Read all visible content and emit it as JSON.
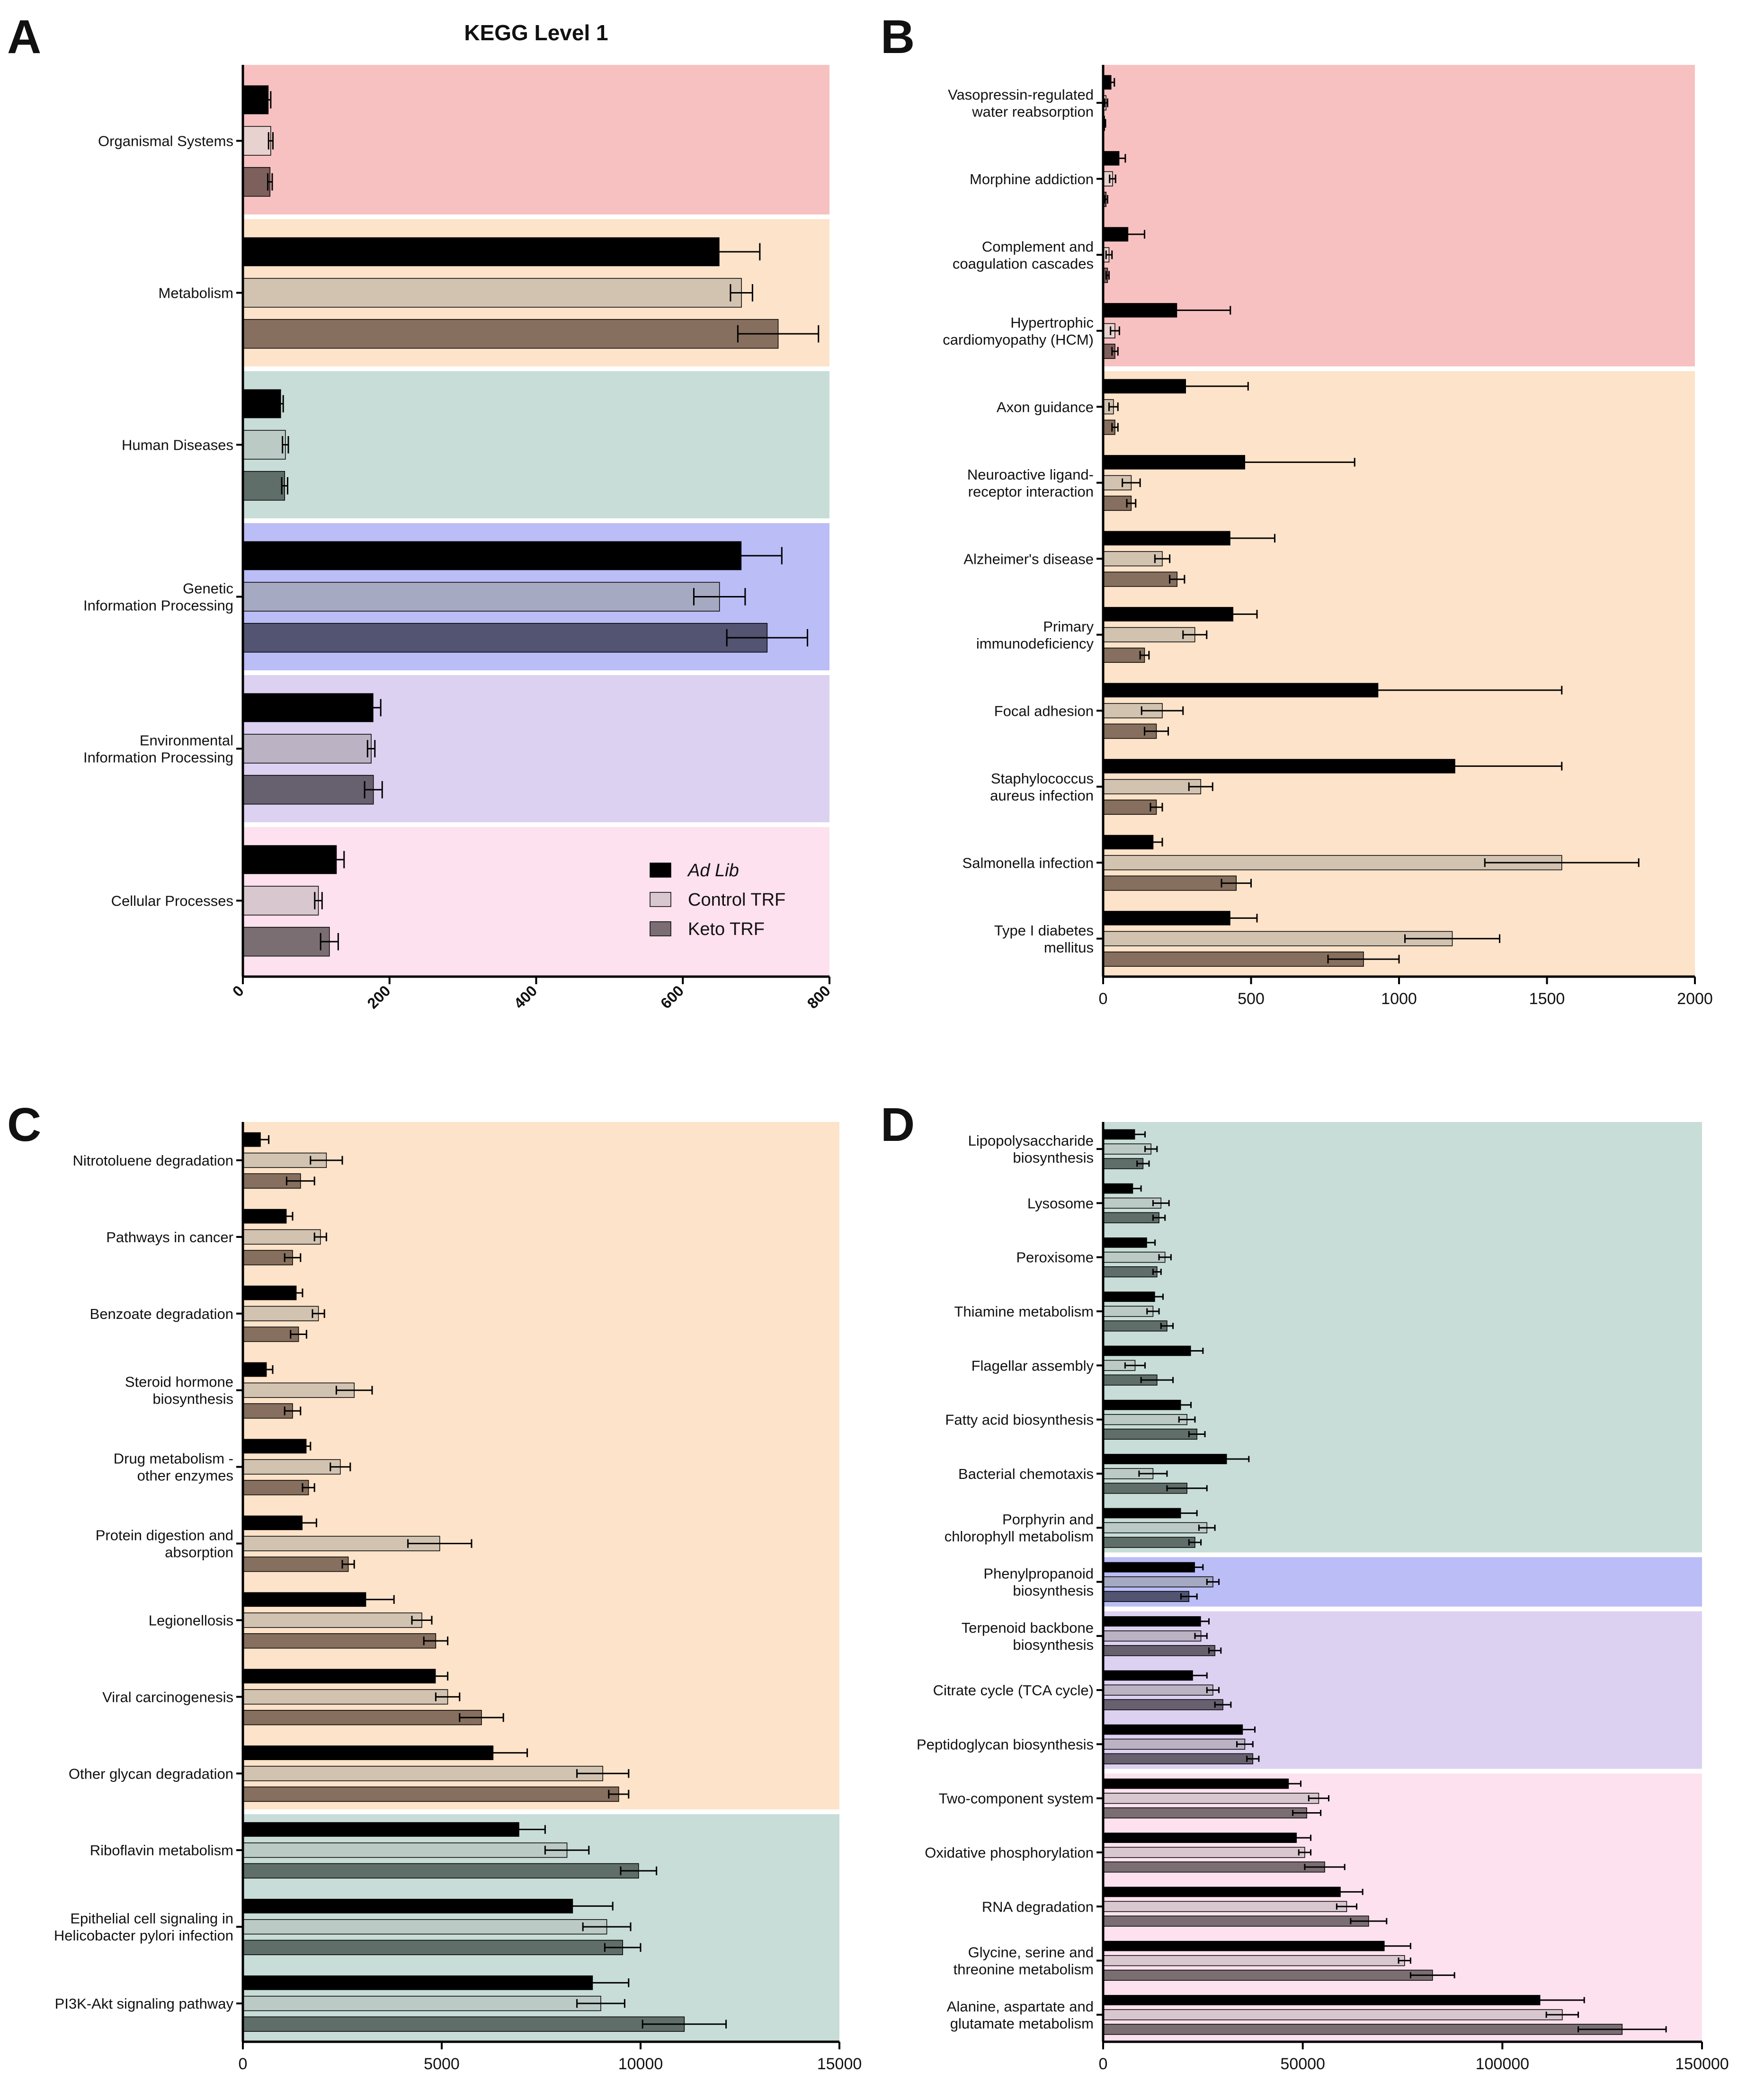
{
  "series_styles": [
    {
      "fill": "#000000"
    },
    {
      "fill_alpha": 0.55,
      "stroke": "#000000"
    },
    {
      "fill_alpha": 0.88,
      "stroke": "#000000"
    }
  ],
  "chart_data": [
    {
      "panel": "A",
      "type": "bar",
      "orientation": "horizontal",
      "title": "KEGG Level 1",
      "legend": {
        "position": "bottom-right",
        "entries": [
          "Ad Lib",
          "Control TRF",
          "Keto TRF"
        ],
        "italic": [
          true,
          false,
          false
        ]
      },
      "series_names": [
        "Ad Lib",
        "Control TRF",
        "Keto TRF"
      ],
      "xlim": [
        0,
        800
      ],
      "ticks": [
        0,
        200,
        400,
        600,
        800
      ],
      "tick_style": "rotated-bold",
      "bands": [
        {
          "color": "#f7c1c1",
          "cats": [
            0,
            0
          ],
          "series_colors": [
            "#000000",
            "#e8d2cf",
            "#7d5f5c"
          ]
        },
        {
          "color": "#fde3c9",
          "cats": [
            1,
            1
          ],
          "series_colors": [
            "#000000",
            "#d2c3b1",
            "#866f5e"
          ]
        },
        {
          "color": "#c8ddd7",
          "cats": [
            2,
            2
          ],
          "series_colors": [
            "#000000",
            "#bccac5",
            "#5f6e69"
          ]
        },
        {
          "color": "#babdf6",
          "cats": [
            3,
            3
          ],
          "series_colors": [
            "#000000",
            "#a6a9c2",
            "#525471"
          ]
        },
        {
          "color": "#ddd1f2",
          "cats": [
            4,
            4
          ],
          "series_colors": [
            "#000000",
            "#bbb3c4",
            "#67606f"
          ]
        },
        {
          "color": "#fde1ee",
          "cats": [
            5,
            5
          ],
          "series_colors": [
            "#000000",
            "#d8c7ce",
            "#7b6e73"
          ]
        }
      ],
      "categories": [
        "Organismal Systems",
        "Metabolism",
        "Human Diseases",
        "Genetic\nInformation Processing",
        "Environmental\nInformation Processing",
        "Cellular Processes"
      ],
      "values": [
        [
          35,
          38,
          37
        ],
        [
          650,
          680,
          730
        ],
        [
          52,
          58,
          57
        ],
        [
          680,
          650,
          715
        ],
        [
          178,
          175,
          178
        ],
        [
          128,
          103,
          118
        ]
      ],
      "errors": [
        [
          3,
          3,
          3
        ],
        [
          55,
          15,
          55
        ],
        [
          3,
          4,
          4
        ],
        [
          55,
          35,
          55
        ],
        [
          10,
          5,
          12
        ],
        [
          10,
          5,
          12
        ]
      ]
    },
    {
      "panel": "B",
      "type": "bar",
      "orientation": "horizontal",
      "title": "",
      "series_names": [
        "Ad Lib",
        "Control TRF",
        "Keto TRF"
      ],
      "xlim": [
        0,
        2000
      ],
      "ticks": [
        0,
        500,
        1000,
        1500,
        2000
      ],
      "tick_style": "plain",
      "bands": [
        {
          "color": "#f7c1c1",
          "cats": [
            0,
            3
          ],
          "series_colors": [
            "#000000",
            "#e8d2cf",
            "#7d5f5c"
          ]
        },
        {
          "color": "#fde3c9",
          "cats": [
            4,
            11
          ],
          "series_colors": [
            "#000000",
            "#d2c3b1",
            "#866f5e"
          ]
        }
      ],
      "categories": [
        "Vasopressin-regulated\nwater reabsorption",
        "Morphine addiction",
        "Complement and\ncoagulation cascades",
        "Hypertrophic\ncardiomyopathy (HCM)",
        "Axon guidance",
        "Neuroactive ligand-\nreceptor interaction",
        "Alzheimer's disease",
        "Primary\nimmunodeficiency",
        "Focal adhesion",
        "Staphylococcus\naureus infection",
        "Salmonella infection",
        "Type I diabetes\nmellitus"
      ],
      "values": [
        [
          28,
          10,
          5
        ],
        [
          55,
          32,
          10
        ],
        [
          85,
          20,
          15
        ],
        [
          250,
          40,
          40
        ],
        [
          280,
          35,
          40
        ],
        [
          480,
          95,
          95
        ],
        [
          430,
          200,
          250
        ],
        [
          440,
          310,
          140
        ],
        [
          930,
          200,
          180
        ],
        [
          1190,
          330,
          180
        ],
        [
          170,
          1550,
          450
        ],
        [
          430,
          1180,
          880
        ]
      ],
      "errors": [
        [
          10,
          5,
          3
        ],
        [
          20,
          10,
          5
        ],
        [
          55,
          10,
          5
        ],
        [
          180,
          15,
          10
        ],
        [
          210,
          15,
          10
        ],
        [
          370,
          30,
          15
        ],
        [
          150,
          25,
          25
        ],
        [
          80,
          40,
          15
        ],
        [
          620,
          70,
          40
        ],
        [
          360,
          40,
          20
        ],
        [
          30,
          260,
          50
        ],
        [
          90,
          160,
          120
        ]
      ]
    },
    {
      "panel": "C",
      "type": "bar",
      "orientation": "horizontal",
      "title": "",
      "series_names": [
        "Ad Lib",
        "Control TRF",
        "Keto TRF"
      ],
      "xlim": [
        0,
        15000
      ],
      "ticks": [
        0,
        5000,
        10000,
        15000
      ],
      "tick_style": "plain",
      "bands": [
        {
          "color": "#fde3c9",
          "cats": [
            0,
            8
          ],
          "series_colors": [
            "#000000",
            "#d2c3b1",
            "#866f5e"
          ]
        },
        {
          "color": "#c8ddd7",
          "cats": [
            9,
            11
          ],
          "series_colors": [
            "#000000",
            "#bccac5",
            "#5f6e69"
          ]
        }
      ],
      "categories": [
        "Nitrotoluene degradation",
        "Pathways in cancer",
        "Benzoate degradation",
        "Steroid hormone\nbiosynthesis",
        "Drug metabolism -\nother enzymes",
        "Protein digestion and\nabsorption",
        "Legionellosis",
        "Viral carcinogenesis",
        "Other glycan degradation",
        "Riboflavin metabolism",
        "Epithelial cell signaling in\nHelicobacter pylori infection",
        "PI3K-Akt signaling pathway"
      ],
      "values": [
        [
          450,
          2100,
          1450
        ],
        [
          1100,
          1950,
          1250
        ],
        [
          1350,
          1900,
          1400
        ],
        [
          600,
          2800,
          1250
        ],
        [
          1600,
          2450,
          1650
        ],
        [
          1500,
          4950,
          2650
        ],
        [
          3100,
          4500,
          4850
        ],
        [
          4850,
          5150,
          6000
        ],
        [
          6300,
          9050,
          9450
        ],
        [
          6950,
          8150,
          9950
        ],
        [
          8300,
          9150,
          9550
        ],
        [
          8800,
          9000,
          11100
        ]
      ],
      "errors": [
        [
          200,
          400,
          350
        ],
        [
          150,
          150,
          200
        ],
        [
          150,
          150,
          200
        ],
        [
          150,
          450,
          200
        ],
        [
          100,
          250,
          150
        ],
        [
          350,
          800,
          150
        ],
        [
          700,
          250,
          300
        ],
        [
          300,
          300,
          550
        ],
        [
          850,
          650,
          250
        ],
        [
          650,
          550,
          450
        ],
        [
          1000,
          600,
          450
        ],
        [
          900,
          600,
          1050
        ]
      ]
    },
    {
      "panel": "D",
      "type": "bar",
      "orientation": "horizontal",
      "title": "",
      "series_names": [
        "Ad Lib",
        "Control TRF",
        "Keto TRF"
      ],
      "xlim": [
        0,
        150000
      ],
      "ticks": [
        0,
        50000,
        100000,
        150000
      ],
      "tick_style": "plain",
      "bands": [
        {
          "color": "#c8ddd7",
          "cats": [
            0,
            7
          ],
          "series_colors": [
            "#000000",
            "#bccac5",
            "#5f6e69"
          ]
        },
        {
          "color": "#babdf6",
          "cats": [
            8,
            8
          ],
          "series_colors": [
            "#000000",
            "#a6a9c2",
            "#525471"
          ]
        },
        {
          "color": "#ddd1f2",
          "cats": [
            9,
            11
          ],
          "series_colors": [
            "#000000",
            "#bbb3c4",
            "#67606f"
          ]
        },
        {
          "color": "#fde1ee",
          "cats": [
            12,
            16
          ],
          "series_colors": [
            "#000000",
            "#d8c7ce",
            "#7b6e73"
          ]
        }
      ],
      "categories": [
        "Lipopolysaccharide\nbiosynthesis",
        "Lysosome",
        "Peroxisome",
        "Thiamine metabolism",
        "Flagellar assembly",
        "Fatty acid biosynthesis",
        "Bacterial chemotaxis",
        "Porphyrin and\nchlorophyll metabolism",
        "Phenylpropanoid\nbiosynthesis",
        "Terpenoid backbone\nbiosynthesis",
        "Citrate cycle (TCA cycle)",
        "Peptidoglycan biosynthesis",
        "Two-component system",
        "Oxidative phosphorylation",
        "RNA degradation",
        "Glycine, serine and\nthreonine metabolism",
        "Alanine, aspartate and\nglutamate metabolism"
      ],
      "values": [
        [
          8000,
          12000,
          10000
        ],
        [
          7500,
          14500,
          14000
        ],
        [
          11000,
          15500,
          13500
        ],
        [
          13000,
          12500,
          16000
        ],
        [
          22000,
          8000,
          13500
        ],
        [
          19500,
          21000,
          23500
        ],
        [
          31000,
          12500,
          21000
        ],
        [
          19500,
          26000,
          23000
        ],
        [
          23000,
          27500,
          21500
        ],
        [
          24500,
          24500,
          28000
        ],
        [
          22500,
          27500,
          30000
        ],
        [
          35000,
          35500,
          37500
        ],
        [
          46500,
          54000,
          51000
        ],
        [
          48500,
          50500,
          55500
        ],
        [
          59500,
          61000,
          66500
        ],
        [
          70500,
          75500,
          82500
        ],
        [
          109500,
          115000,
          130000
        ]
      ],
      "errors": [
        [
          2500,
          1500,
          1500
        ],
        [
          2000,
          2000,
          1500
        ],
        [
          2000,
          1500,
          1000
        ],
        [
          2000,
          1500,
          1500
        ],
        [
          3000,
          2500,
          4000
        ],
        [
          2500,
          2000,
          2000
        ],
        [
          5500,
          3500,
          5000
        ],
        [
          4000,
          2000,
          1500
        ],
        [
          2000,
          1500,
          2000
        ],
        [
          2000,
          1500,
          1500
        ],
        [
          3500,
          1500,
          2000
        ],
        [
          3000,
          2000,
          1500
        ],
        [
          3000,
          2500,
          3500
        ],
        [
          3500,
          1500,
          5000
        ],
        [
          5500,
          2500,
          4500
        ],
        [
          6500,
          1500,
          5500
        ],
        [
          11000,
          4000,
          11000
        ]
      ]
    }
  ]
}
